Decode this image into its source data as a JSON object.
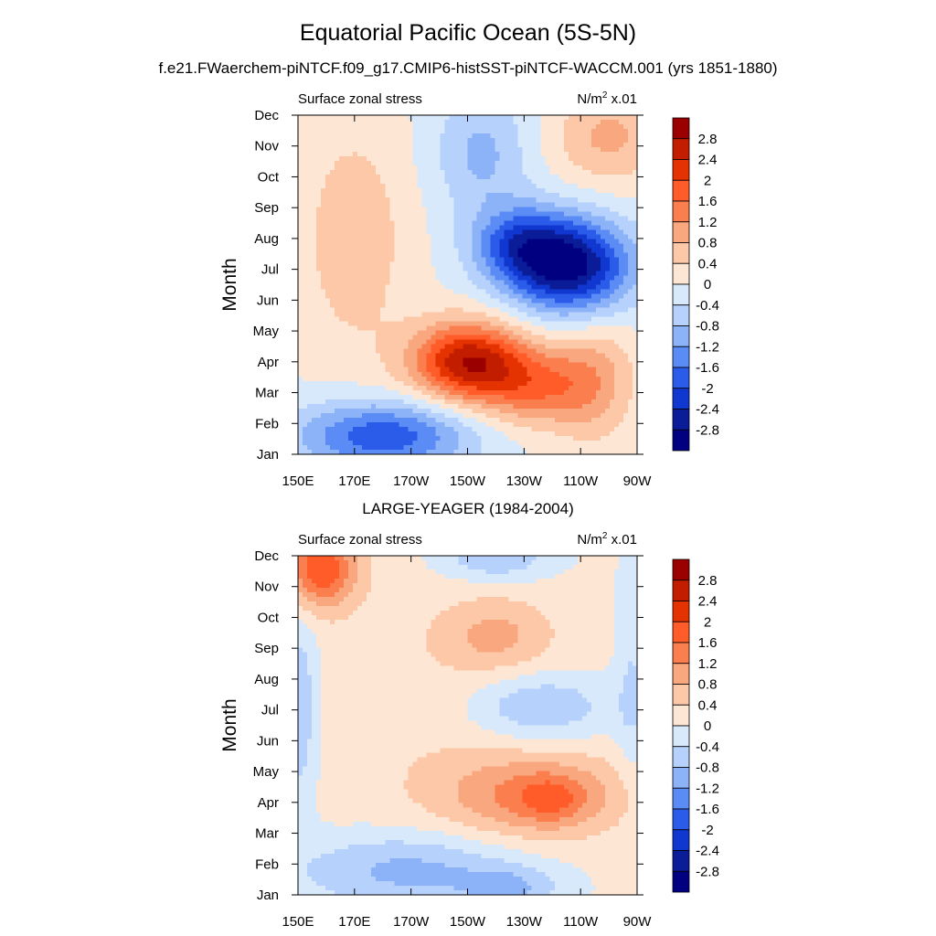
{
  "chart_data": [
    {
      "type": "heatmap",
      "panel_title": "",
      "left_label": "Surface zonal stress",
      "units": {
        "base": "N/m",
        "exp": "2",
        "suffix": " x.01"
      },
      "ylabel": "Month",
      "x_ticks": [
        "150E",
        "170E",
        "170W",
        "150W",
        "130W",
        "110W",
        "90W"
      ],
      "x_values": [
        150,
        170,
        190,
        210,
        230,
        250,
        270
      ],
      "xlim": [
        150,
        270
      ],
      "y_ticks": [
        "Jan",
        "Feb",
        "Mar",
        "Apr",
        "May",
        "Jun",
        "Jul",
        "Aug",
        "Sep",
        "Oct",
        "Nov",
        "Dec"
      ],
      "ylim": [
        1,
        12
      ],
      "colorbar_levels": [
        "2.8",
        "2.4",
        "2",
        "1.6",
        "1.2",
        "0.8",
        "0.4",
        "0",
        "-0.4",
        "-0.8",
        "-1.2",
        "-1.6",
        "-2",
        "-2.4",
        "-2.8"
      ],
      "features": [
        {
          "name": "positive-band-west",
          "lon": 170,
          "month": 8,
          "slon": 13,
          "smonth": 2.6,
          "amp": 0.7
        },
        {
          "name": "westerly-max-apr",
          "lon": 210,
          "month": 4,
          "slon": 14,
          "smonth": 0.9,
          "amp": 2.7
        },
        {
          "name": "westerly-tail-east",
          "lon": 235,
          "month": 3.2,
          "slon": 14,
          "smonth": 0.9,
          "amp": 1.4
        },
        {
          "name": "easterly-min-jul",
          "lon": 247,
          "month": 7.1,
          "slon": 15,
          "smonth": 1.1,
          "amp": -2.9
        },
        {
          "name": "easterly-aug",
          "lon": 228,
          "month": 7.8,
          "slon": 12,
          "smonth": 0.9,
          "amp": -1.6
        },
        {
          "name": "easterly-jan-feb",
          "lon": 180,
          "month": 1.6,
          "slon": 22,
          "smonth": 0.8,
          "amp": -1.9
        },
        {
          "name": "easterly-oct-nov",
          "lon": 215,
          "month": 10.8,
          "slon": 12,
          "smonth": 1.4,
          "amp": -0.9
        },
        {
          "name": "positive-nov-dec-east",
          "lon": 260,
          "month": 11.3,
          "slon": 14,
          "smonth": 1.1,
          "amp": 0.9
        },
        {
          "name": "westerly-mar-east",
          "lon": 255,
          "month": 3.5,
          "slon": 10,
          "smonth": 1.5,
          "amp": 0.8
        }
      ]
    },
    {
      "type": "heatmap",
      "panel_title": "LARGE-YEAGER (1984-2004)",
      "left_label": "Surface zonal stress",
      "units": {
        "base": "N/m",
        "exp": "2",
        "suffix": " x.01"
      },
      "ylabel": "Month",
      "x_ticks": [
        "150E",
        "170E",
        "170W",
        "150W",
        "130W",
        "110W",
        "90W"
      ],
      "x_values": [
        150,
        170,
        190,
        210,
        230,
        250,
        270
      ],
      "xlim": [
        150,
        270
      ],
      "y_ticks": [
        "Jan",
        "Feb",
        "Mar",
        "Apr",
        "May",
        "Jun",
        "Jul",
        "Aug",
        "Sep",
        "Oct",
        "Nov",
        "Dec"
      ],
      "ylim": [
        1,
        12
      ],
      "colorbar_levels": [
        "2.8",
        "2.4",
        "2",
        "1.6",
        "1.2",
        "0.8",
        "0.4",
        "0",
        "-0.4",
        "-0.8",
        "-1.2",
        "-1.6",
        "-2",
        "-2.4",
        "-2.8"
      ],
      "features": [
        {
          "name": "base-positive",
          "lon": 205,
          "month": 6.5,
          "slon": 45,
          "smonth": 4.5,
          "amp": 0.35
        },
        {
          "name": "westerly-nov-dec-west",
          "lon": 158,
          "month": 11.6,
          "slon": 9,
          "smonth": 0.9,
          "amp": 1.9
        },
        {
          "name": "westerly-apr",
          "lon": 235,
          "month": 4.2,
          "slon": 22,
          "smonth": 0.9,
          "amp": 1.2
        },
        {
          "name": "westerly-apr-core",
          "lon": 240,
          "month": 4.1,
          "slon": 7,
          "smonth": 0.5,
          "amp": 0.6
        },
        {
          "name": "westerly-sep",
          "lon": 220,
          "month": 9.4,
          "slon": 13,
          "smonth": 0.8,
          "amp": 0.7
        },
        {
          "name": "easterly-feb",
          "lon": 190,
          "month": 1.8,
          "slon": 28,
          "smonth": 0.9,
          "amp": -1.1
        },
        {
          "name": "easterly-jan-east",
          "lon": 225,
          "month": 1.2,
          "slon": 12,
          "smonth": 0.5,
          "amp": -0.8
        },
        {
          "name": "easterly-jul",
          "lon": 235,
          "month": 7.1,
          "slon": 18,
          "smonth": 0.8,
          "amp": -1.0
        },
        {
          "name": "easterly-dec",
          "lon": 220,
          "month": 11.9,
          "slon": 14,
          "smonth": 0.5,
          "amp": -0.9
        },
        {
          "name": "easterly-west-edge",
          "lon": 150,
          "month": 7.0,
          "slon": 5,
          "smonth": 2.2,
          "amp": -0.9
        },
        {
          "name": "easterly-east-edge",
          "lon": 268,
          "month": 8.0,
          "slon": 4,
          "smonth": 2.5,
          "amp": -0.5
        }
      ]
    }
  ],
  "header": {
    "title": "Equatorial Pacific Ocean (5S-5N)",
    "subtitle": "f.e21.FWaerchem-piNTCF.f09_g17.CMIP6-histSST-piNTCF-WACCM.001 (yrs 1851-1880)"
  },
  "palette": {
    "colors": [
      "#9a0000",
      "#c31d00",
      "#e43200",
      "#ff5c2a",
      "#fb7e4f",
      "#f9a77f",
      "#fdc8a8",
      "#fde6d4",
      "#d8e9fb",
      "#b6d1fc",
      "#8cb2f8",
      "#5b8cf5",
      "#2b5be9",
      "#1037cf",
      "#0a1c97",
      "#000080"
    ]
  }
}
